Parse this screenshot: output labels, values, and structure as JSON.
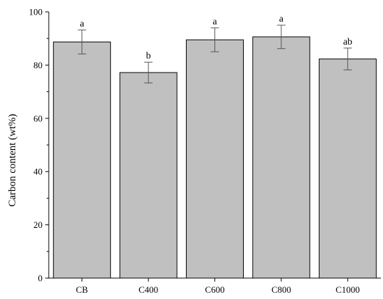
{
  "chart_data": {
    "type": "bar",
    "title": "",
    "xlabel": "",
    "ylabel": "Carbon content (wt%)",
    "ylim": [
      0,
      100
    ],
    "yticks": [
      0,
      20,
      40,
      60,
      80,
      100
    ],
    "ytick_labels": [
      "0",
      "20",
      "40",
      "60",
      "80",
      "100"
    ],
    "categories": [
      "CB",
      "C400",
      "C600",
      "C800",
      "C1000"
    ],
    "values": [
      88.7,
      77.2,
      89.5,
      90.6,
      82.3
    ],
    "errors": [
      4.5,
      3.9,
      4.5,
      4.4,
      4.1
    ],
    "significance": [
      "a",
      "b",
      "a",
      "a",
      "ab"
    ],
    "grid": false,
    "legend": "none",
    "bar_color": "#c0c0c0",
    "edge_color": "#000000"
  }
}
